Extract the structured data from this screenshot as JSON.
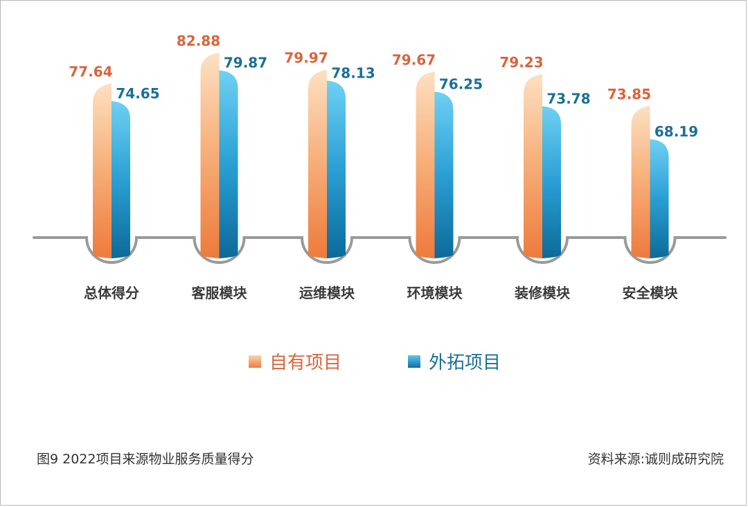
{
  "chart_data": {
    "type": "bar",
    "categories": [
      "总体得分",
      "客服模块",
      "运维模块",
      "环境模块",
      "装修模块",
      "安全模块"
    ],
    "series": [
      {
        "name": "自有项目",
        "values": [
          77.64,
          82.88,
          79.97,
          79.67,
          79.23,
          73.85
        ],
        "color": "#ee7e40"
      },
      {
        "name": "外拓项目",
        "values": [
          74.65,
          79.87,
          78.13,
          76.25,
          73.78,
          68.19
        ],
        "color": "#1b8ac2"
      }
    ],
    "ylim": [
      0,
      85
    ],
    "legend": "bottom-center",
    "grid": false
  },
  "caption": "图9  2022项目来源物业服务质量得分",
  "source": "资料来源:诚则成研究院"
}
